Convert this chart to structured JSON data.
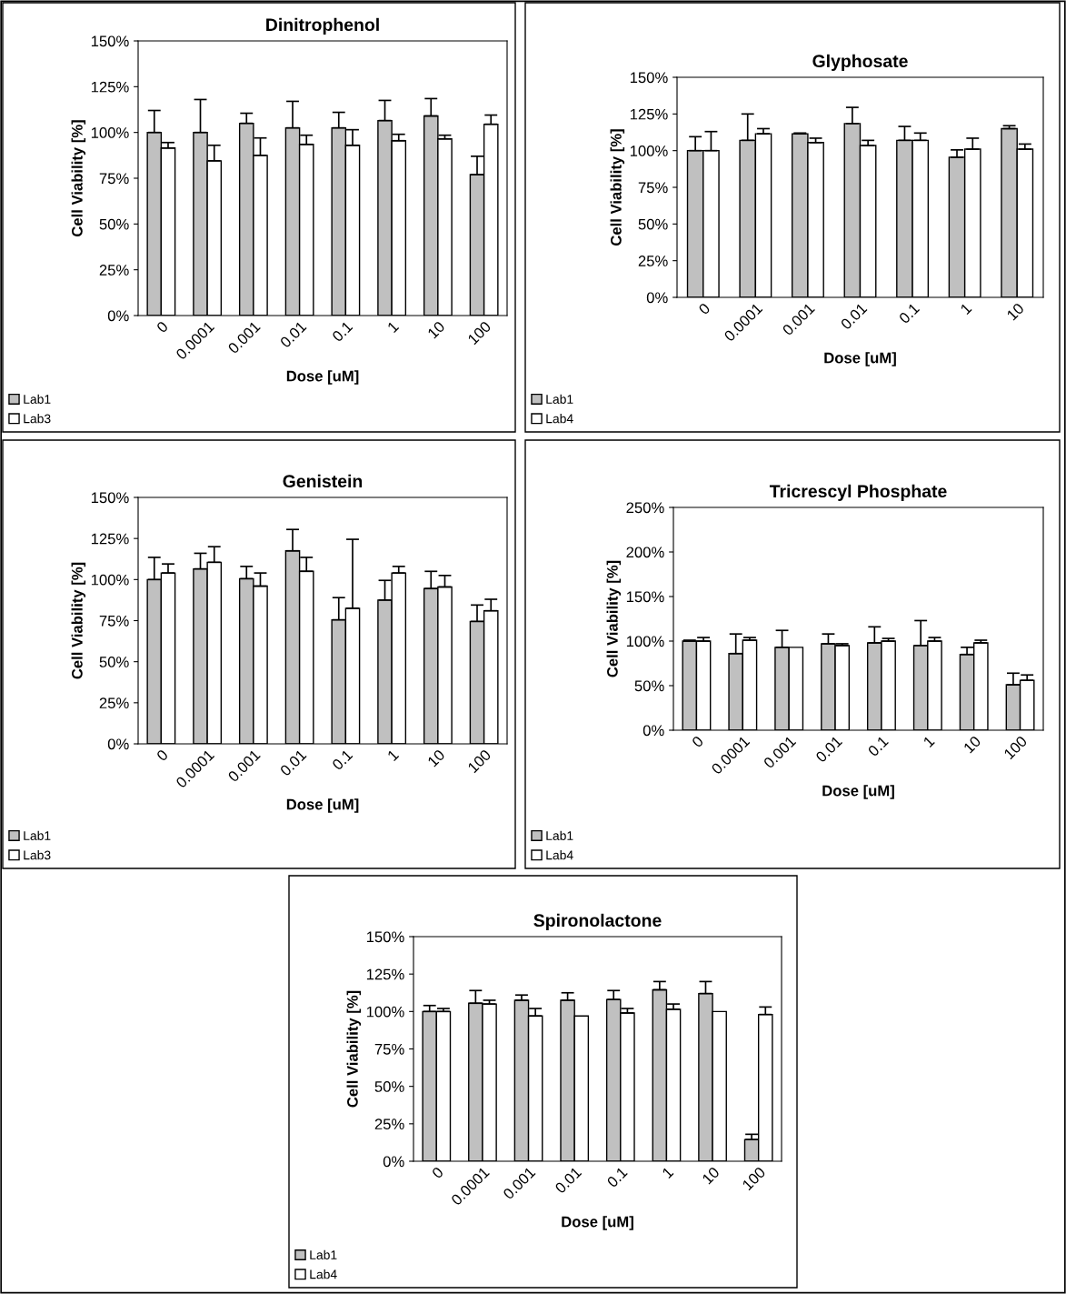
{
  "chart_data": [
    {
      "type": "bar",
      "title": "Dinitrophenol",
      "xlabel": "Dose [uM]",
      "ylabel": "Cell Viability [%]",
      "categories": [
        "0",
        "0.0001",
        "0.001",
        "0.01",
        "0.1",
        "1",
        "10",
        "100"
      ],
      "series": [
        {
          "name": "Lab1",
          "color": "#c0c0c0",
          "values": [
            100,
            100,
            105,
            102.5,
            102.5,
            106.5,
            109,
            77
          ],
          "errors": [
            [
              100,
              112
            ],
            [
              100,
              118
            ],
            [
              105,
              110.5
            ],
            [
              102.5,
              117
            ],
            [
              102.5,
              111
            ],
            [
              106.5,
              117.5
            ],
            [
              109,
              118.5
            ],
            [
              77,
              87
            ]
          ]
        },
        {
          "name": "Lab3",
          "color": "#ffffff",
          "values": [
            91.5,
            84.5,
            87.5,
            93.5,
            93,
            95.5,
            96.5,
            104.5
          ],
          "errors": [
            [
              91.5,
              94.5
            ],
            [
              84.5,
              93
            ],
            [
              87.5,
              97
            ],
            [
              93.5,
              98.5
            ],
            [
              93,
              101.5
            ],
            [
              95.5,
              99
            ],
            [
              96.5,
              98.5
            ],
            [
              104.5,
              109.5
            ]
          ]
        }
      ],
      "ylim": [
        0,
        150
      ],
      "yticks": [
        {
          "value": 0,
          "label": "0%"
        },
        {
          "value": 25,
          "label": "25%"
        },
        {
          "value": 50,
          "label": "50%"
        },
        {
          "value": 75,
          "label": "75%"
        },
        {
          "value": 100,
          "label": "100%"
        },
        {
          "value": 125,
          "label": "125%"
        },
        {
          "value": 150,
          "label": "150%"
        }
      ],
      "legend": "bottom left",
      "grid": false
    },
    {
      "type": "bar",
      "title": "Glyphosate",
      "xlabel": "Dose [uM]",
      "ylabel": "Cell Viability [%]",
      "categories": [
        "0",
        "0.0001",
        "0.001",
        "0.01",
        "0.1",
        "1",
        "10"
      ],
      "series": [
        {
          "name": "Lab1",
          "color": "#c0c0c0",
          "values": [
            100,
            107,
            111.5,
            118.5,
            107,
            95.5,
            115
          ],
          "errors": [
            [
              100,
              109.5
            ],
            [
              107,
              125
            ],
            [
              111.5,
              112
            ],
            [
              118.5,
              129.5
            ],
            [
              107,
              116.5
            ],
            [
              95.5,
              100.5
            ],
            [
              115,
              117
            ]
          ]
        },
        {
          "name": "Lab4",
          "color": "#ffffff",
          "values": [
            100,
            111.5,
            105.5,
            103.5,
            107,
            101,
            101
          ],
          "errors": [
            [
              100,
              113
            ],
            [
              111.5,
              115
            ],
            [
              105.5,
              108.5
            ],
            [
              103.5,
              107
            ],
            [
              107,
              112
            ],
            [
              101,
              108.5
            ],
            [
              101,
              104.5
            ]
          ]
        }
      ],
      "ylim": [
        0,
        150
      ],
      "yticks": [
        {
          "value": 0,
          "label": "0%"
        },
        {
          "value": 25,
          "label": "25%"
        },
        {
          "value": 50,
          "label": "50%"
        },
        {
          "value": 75,
          "label": "75%"
        },
        {
          "value": 100,
          "label": "100%"
        },
        {
          "value": 125,
          "label": "125%"
        },
        {
          "value": 150,
          "label": "150%"
        }
      ],
      "legend": "bottom left",
      "grid": false
    },
    {
      "type": "bar",
      "title": "Genistein",
      "xlabel": "Dose [uM]",
      "ylabel": "Cell Viability [%]",
      "categories": [
        "0",
        "0.0001",
        "0.001",
        "0.01",
        "0.1",
        "1",
        "10",
        "100"
      ],
      "series": [
        {
          "name": "Lab1",
          "color": "#c0c0c0",
          "values": [
            100,
            106.5,
            100.5,
            117.5,
            75.5,
            87.5,
            94.5,
            74.5
          ],
          "errors": [
            [
              100,
              113.5
            ],
            [
              106.5,
              116
            ],
            [
              100.5,
              108
            ],
            [
              117.5,
              130.5
            ],
            [
              75.5,
              89
            ],
            [
              87.5,
              99.5
            ],
            [
              94.5,
              105
            ],
            [
              74.5,
              84.5
            ]
          ]
        },
        {
          "name": "Lab3",
          "color": "#ffffff",
          "values": [
            104,
            110.5,
            96,
            105,
            82.5,
            104,
            95.5,
            81
          ],
          "errors": [
            [
              104,
              109.5
            ],
            [
              110.5,
              120
            ],
            [
              96,
              104
            ],
            [
              105,
              113.5
            ],
            [
              82.5,
              124.5
            ],
            [
              104,
              108
            ],
            [
              95.5,
              102.5
            ],
            [
              81,
              88
            ]
          ]
        }
      ],
      "ylim": [
        0,
        150
      ],
      "yticks": [
        {
          "value": 0,
          "label": "0%"
        },
        {
          "value": 25,
          "label": "25%"
        },
        {
          "value": 50,
          "label": "50%"
        },
        {
          "value": 75,
          "label": "75%"
        },
        {
          "value": 100,
          "label": "100%"
        },
        {
          "value": 125,
          "label": "125%"
        },
        {
          "value": 150,
          "label": "150%"
        }
      ],
      "legend": "bottom left",
      "grid": false
    },
    {
      "type": "bar",
      "title": "Tricrescyl Phosphate",
      "xlabel": "Dose [uM]",
      "ylabel": "Cell Viability [%]",
      "categories": [
        "0",
        "0.0001",
        "0.001",
        "0.01",
        "0.1",
        "1",
        "10",
        "100"
      ],
      "series": [
        {
          "name": "Lab1",
          "color": "#c0c0c0",
          "values": [
            100,
            86,
            93,
            97,
            98,
            95,
            85,
            51
          ],
          "errors": [
            [
              100,
              101
            ],
            [
              86,
              108
            ],
            [
              93,
              112
            ],
            [
              97,
              108
            ],
            [
              98,
              116
            ],
            [
              95,
              123
            ],
            [
              85,
              93
            ],
            [
              51,
              64
            ]
          ]
        },
        {
          "name": "Lab4",
          "color": "#ffffff",
          "values": [
            100,
            101,
            93,
            95,
            100,
            100,
            98,
            56
          ],
          "errors": [
            [
              100,
              104
            ],
            [
              101,
              104
            ],
            null,
            [
              95,
              97
            ],
            [
              100,
              103
            ],
            [
              100,
              104
            ],
            [
              98,
              101
            ],
            [
              56,
              62
            ]
          ]
        }
      ],
      "ylim": [
        0,
        250
      ],
      "yticks": [
        {
          "value": 0,
          "label": "0%"
        },
        {
          "value": 50,
          "label": "50%"
        },
        {
          "value": 100,
          "label": "100%"
        },
        {
          "value": 150,
          "label": "150%"
        },
        {
          "value": 200,
          "label": "200%"
        },
        {
          "value": 250,
          "label": "250%"
        }
      ],
      "legend": "bottom left",
      "grid": false
    },
    {
      "type": "bar",
      "title": "Spironolactone",
      "xlabel": "Dose [uM]",
      "ylabel": "Cell Viability [%]",
      "categories": [
        "0",
        "0.0001",
        "0.001",
        "0.01",
        "0.1",
        "1",
        "10",
        "100"
      ],
      "series": [
        {
          "name": "Lab1",
          "color": "#c0c0c0",
          "values": [
            100,
            105.5,
            107.5,
            107.5,
            108,
            114.5,
            112,
            14.5
          ],
          "errors": [
            [
              100,
              104
            ],
            [
              105.5,
              114
            ],
            [
              107.5,
              111
            ],
            [
              107.5,
              112.5
            ],
            [
              108,
              114
            ],
            [
              114.5,
              120
            ],
            [
              112,
              120
            ],
            [
              14.5,
              18
            ]
          ]
        },
        {
          "name": "Lab4",
          "color": "#ffffff",
          "values": [
            100,
            105,
            97,
            97,
            99,
            101.5,
            100,
            98
          ],
          "errors": [
            [
              100,
              102
            ],
            [
              105,
              107.5
            ],
            [
              97,
              102
            ],
            null,
            [
              99,
              102
            ],
            [
              101.5,
              105
            ],
            null,
            [
              98,
              103
            ]
          ]
        }
      ],
      "ylim": [
        0,
        150
      ],
      "yticks": [
        {
          "value": 0,
          "label": "0%"
        },
        {
          "value": 25,
          "label": "25%"
        },
        {
          "value": 50,
          "label": "50%"
        },
        {
          "value": 75,
          "label": "75%"
        },
        {
          "value": 100,
          "label": "100%"
        },
        {
          "value": 125,
          "label": "125%"
        },
        {
          "value": 150,
          "label": "150%"
        }
      ],
      "legend": "bottom left",
      "grid": false
    }
  ]
}
